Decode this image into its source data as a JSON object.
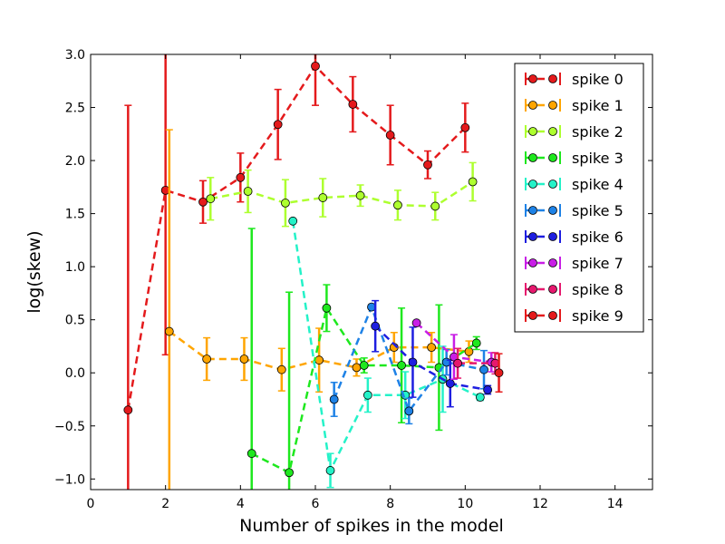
{
  "chart_data": {
    "type": "line",
    "xlabel": "Number of spikes in the model",
    "ylabel": "log(skew)",
    "xlim": [
      0,
      15
    ],
    "ylim": [
      -1.1,
      3.0
    ],
    "xticks": [
      0,
      2,
      4,
      6,
      8,
      10,
      12,
      14
    ],
    "yticks": [
      -1.0,
      -0.5,
      0.0,
      0.5,
      1.0,
      1.5,
      2.0,
      2.5,
      3.0
    ],
    "xtick_labels": [
      "0",
      "2",
      "4",
      "6",
      "8",
      "10",
      "12",
      "14"
    ],
    "ytick_labels": [
      "−1.0",
      "−0.5",
      "0.0",
      "0.5",
      "1.0",
      "1.5",
      "2.0",
      "2.5",
      "3.0"
    ],
    "grid": false,
    "legend_position": "top-right",
    "series": [
      {
        "name": "spike 0",
        "color": "#e41a1c",
        "x": [
          1,
          2,
          3,
          4,
          5,
          6,
          7,
          8,
          9,
          10
        ],
        "y": [
          -0.35,
          1.72,
          1.61,
          1.84,
          2.34,
          2.89,
          2.53,
          2.24,
          1.96,
          2.31
        ],
        "err": [
          2.87,
          1.55,
          0.2,
          0.23,
          0.33,
          0.37,
          0.26,
          0.28,
          0.13,
          0.23
        ]
      },
      {
        "name": "spike 1",
        "color": "#ffa500",
        "x": [
          2.1,
          3.1,
          4.1,
          5.1,
          6.1,
          7.1,
          8.1,
          9.1,
          10.1
        ],
        "y": [
          0.39,
          0.13,
          0.13,
          0.03,
          0.12,
          0.05,
          0.24,
          0.24,
          0.2
        ],
        "err": [
          1.9,
          0.2,
          0.2,
          0.2,
          0.3,
          0.08,
          0.14,
          0.14,
          0.1
        ]
      },
      {
        "name": "spike 2",
        "color": "#adff2f",
        "x": [
          3.2,
          4.2,
          5.2,
          6.2,
          7.2,
          8.2,
          9.2,
          10.2
        ],
        "y": [
          1.64,
          1.71,
          1.6,
          1.65,
          1.67,
          1.58,
          1.57,
          1.8
        ],
        "err": [
          0.2,
          0.2,
          0.22,
          0.18,
          0.1,
          0.14,
          0.13,
          0.18
        ]
      },
      {
        "name": "spike 3",
        "color": "#1ee81e",
        "x": [
          4.3,
          5.3,
          6.3,
          7.3,
          8.3,
          9.3,
          10.3
        ],
        "y": [
          -0.76,
          -0.94,
          0.61,
          0.07,
          0.07,
          0.05,
          0.28
        ],
        "err": [
          2.12,
          1.7,
          0.22,
          0.07,
          0.54,
          0.59,
          0.06
        ]
      },
      {
        "name": "spike 4",
        "color": "#24f2c8",
        "x": [
          5.4,
          6.4,
          7.4,
          8.4,
          9.4,
          10.4
        ],
        "y": [
          1.43,
          -0.92,
          -0.21,
          -0.21,
          -0.06,
          -0.23
        ],
        "err": [
          0.0,
          0.16,
          0.16,
          0.22,
          0.31,
          0.03
        ]
      },
      {
        "name": "spike 5",
        "color": "#1e82e6",
        "x": [
          6.5,
          7.5,
          8.5,
          9.5,
          10.5
        ],
        "y": [
          -0.25,
          0.62,
          -0.36,
          0.1,
          0.03
        ],
        "err": [
          0.16,
          0.0,
          0.12,
          0.12,
          0.18
        ]
      },
      {
        "name": "spike 6",
        "color": "#1e1ee0",
        "x": [
          7.6,
          8.6,
          9.6,
          10.6
        ],
        "y": [
          0.44,
          0.1,
          -0.1,
          -0.16
        ],
        "err": [
          0.24,
          0.33,
          0.22,
          0.04
        ]
      },
      {
        "name": "spike 7",
        "color": "#c81ee6",
        "x": [
          8.7,
          9.7,
          10.7
        ],
        "y": [
          0.47,
          0.15,
          0.1
        ],
        "err": [
          0.0,
          0.21,
          0.09
        ]
      },
      {
        "name": "spike 8",
        "color": "#e6196e",
        "x": [
          9.8,
          10.8
        ],
        "y": [
          0.09,
          0.09
        ],
        "err": [
          0.14,
          0.1
        ]
      },
      {
        "name": "spike 9",
        "color": "#e41a1c",
        "x": [
          10.9
        ],
        "y": [
          0.0
        ],
        "err": [
          0.18
        ]
      }
    ]
  }
}
